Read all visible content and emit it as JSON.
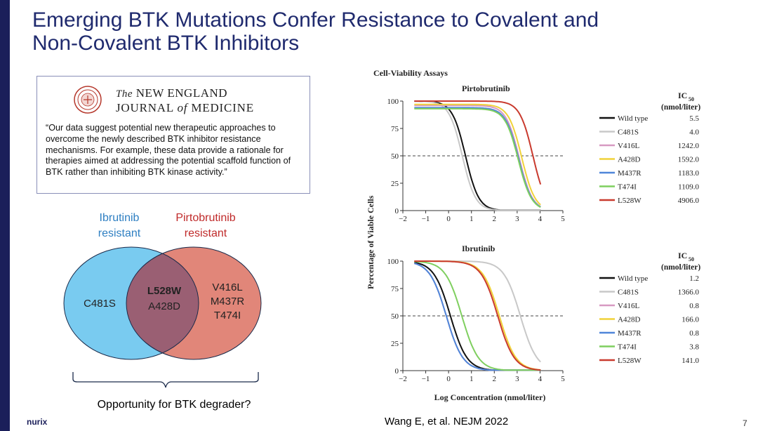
{
  "slide": {
    "title_line1": "Emerging BTK Mutations Confer Resistance to Covalent and",
    "title_line2": "Non-Covalent BTK Inhibitors",
    "page_number": "7",
    "citation": "Wang E, et al. NEJM 2022",
    "logo_text": "nurix",
    "colors": {
      "title": "#1f2a6e",
      "sidebar": "#1b1f5a",
      "ibrutinib": "#2e7fc2",
      "pirtobrutinib": "#c02a2a"
    }
  },
  "nejm": {
    "the": "The",
    "new_england": "NEW ENGLAND",
    "journal": "JOURNAL",
    "of": "of",
    "medicine": "MEDICINE",
    "quote": "“Our data suggest potential new therapeutic approaches to overcome the newly described BTK inhibitor resistance mechanisms. For example, these data provide a rationale for therapies aimed at addressing the potential scaffold function of BTK rather than inhibiting BTK kinase activity.”"
  },
  "venn": {
    "left_label_1": "Ibrutinib",
    "left_label_2": "resistant",
    "right_label_1": "Pirtobrutinib",
    "right_label_2": "resistant",
    "left_only": "C481S",
    "overlap_1": "L528W",
    "overlap_2": "A428D",
    "right_only_1": "V416L",
    "right_only_2": "M437R",
    "right_only_3": "T474I",
    "caption": "Opportunity for BTK degrader?"
  },
  "chart_data": {
    "type": "line",
    "title": "Cell-Viability Assays",
    "ylabel": "Percentage of Viable Cells",
    "xlabel": "Log Concentration (nmol/liter)",
    "xlim": [
      -2,
      5
    ],
    "ylim": [
      0,
      100
    ],
    "xticks": [
      "−2",
      "−1",
      "0",
      "1",
      "2",
      "3",
      "4",
      "5"
    ],
    "yticks": [
      "0",
      "25",
      "50",
      "75",
      "100"
    ],
    "ic50_header": "IC",
    "ic50_sub": "50",
    "ic50_units": "(nmol/liter)",
    "legend": [
      "Wild type",
      "C481S",
      "V416L",
      "A428D",
      "M437R",
      "T474I",
      "L528W"
    ],
    "legend_colors": [
      "#111111",
      "#c8c8c8",
      "#d79ac2",
      "#f0d23a",
      "#4f86d9",
      "#7fcf5f",
      "#c93a2e"
    ],
    "panels": [
      {
        "name": "Pirtobrutinib",
        "ic50": [
          "5.5",
          "4.0",
          "1242.0",
          "1592.0",
          "1183.0",
          "1109.0",
          "4906.0"
        ],
        "series": [
          {
            "name": "Wild type",
            "top": 100,
            "log_ic50": 0.74
          },
          {
            "name": "C481S",
            "top": 100,
            "log_ic50": 0.6
          },
          {
            "name": "V416L",
            "top": 96,
            "log_ic50": 3.09
          },
          {
            "name": "A428D",
            "top": 97,
            "log_ic50": 3.2
          },
          {
            "name": "M437R",
            "top": 94,
            "log_ic50": 3.07
          },
          {
            "name": "T474I",
            "top": 93,
            "log_ic50": 3.05
          },
          {
            "name": "L528W",
            "top": 100,
            "log_ic50": 3.69
          }
        ]
      },
      {
        "name": "Ibrutinib",
        "ic50": [
          "1.2",
          "1366.0",
          "0.8",
          "166.0",
          "0.8",
          "3.8",
          "141.0"
        ],
        "series": [
          {
            "name": "Wild type",
            "top": 100,
            "log_ic50": 0.08
          },
          {
            "name": "C481S",
            "top": 100,
            "log_ic50": 3.14
          },
          {
            "name": "V416L",
            "top": 100,
            "log_ic50": -0.1
          },
          {
            "name": "A428D",
            "top": 100,
            "log_ic50": 2.22
          },
          {
            "name": "M437R",
            "top": 100,
            "log_ic50": -0.1
          },
          {
            "name": "T474I",
            "top": 100,
            "log_ic50": 0.58
          },
          {
            "name": "L528W",
            "top": 100,
            "log_ic50": 2.15
          }
        ]
      }
    ]
  }
}
